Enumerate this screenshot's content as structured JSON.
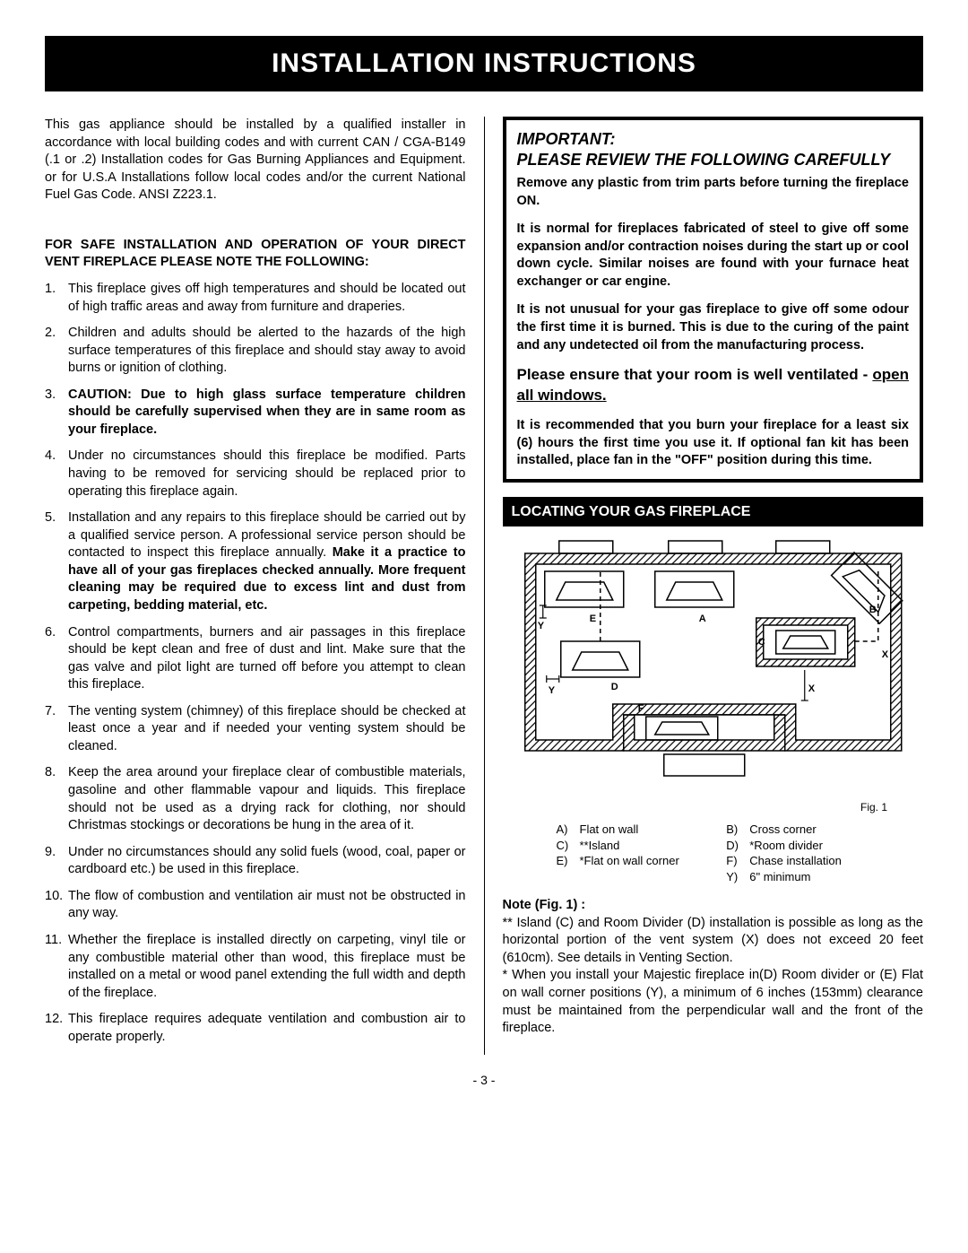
{
  "title": "INSTALLATION INSTRUCTIONS",
  "intro": "This gas appliance should be installed by a qualified installer in accordance with local building codes and with current CAN / CGA-B149 (.1 or .2) Installation codes for Gas Burning Appliances and Equipment. or for U.S.A Installations follow local codes and/or the current National Fuel Gas Code. ANSI Z223.1.",
  "noteHead": "FOR SAFE INSTALLATION AND OPERATION OF YOUR DIRECT VENT FIREPLACE PLEASE NOTE THE FOLLOWING:",
  "list": [
    {
      "text": "This fireplace gives off high temperatures and should be located out of high traffic areas and away from furniture and draperies."
    },
    {
      "text": "Children and adults should be alerted to the hazards of the high surface temperatures of this fireplace and should stay away to avoid burns or ignition of clothing."
    },
    {
      "bold": true,
      "text": "CAUTION: Due to high glass surface temperature children should be carefully supervised when they are in same room as your fireplace."
    },
    {
      "text": "Under no circumstances should this fireplace be modified. Parts having to be removed for servicing should be replaced prior to operating this fireplace again."
    },
    {
      "pre": "Installation and any repairs to this fireplace should be carried out by a qualified service person. A professional service person should be contacted to inspect this fireplace annually. ",
      "boldtail": "Make it a practice to have all of your gas fireplaces checked annually. More frequent cleaning may be required due to excess lint and dust from carpeting, bedding material, etc."
    },
    {
      "text": "Control compartments, burners and air passages in this fireplace should be kept clean and free of dust and lint. Make sure that the gas valve and pilot light are turned off before you attempt to clean this fireplace."
    },
    {
      "text": "The venting system (chimney) of this fireplace should be checked at least once a year and if needed your venting system should be cleaned."
    },
    {
      "text": "Keep the area around your fireplace clear of combustible materials, gasoline and other flammable vapour and liquids. This fireplace should not be used as a drying rack for clothing, nor should Christmas stockings or decorations be hung in the area of it."
    },
    {
      "text": "Under no circumstances should any solid fuels (wood, coal, paper or cardboard etc.) be used in this fireplace."
    },
    {
      "text": "The flow of combustion and ventilation air must not be obstructed in any way."
    },
    {
      "text": "Whether the fireplace is installed directly on carpeting, vinyl tile or any combustible material other than wood, this fireplace must be installed on a metal or wood panel extending the full width and depth of the fireplace."
    },
    {
      "text": "This fireplace requires adequate ventilation and combustion air to operate properly."
    }
  ],
  "important": {
    "head1": "IMPORTANT:",
    "head2": "PLEASE REVIEW THE FOLLOWING CAREFULLY",
    "p1": "Remove any plastic from trim parts before turning the fireplace ON.",
    "p2": "It is normal for fireplaces fabricated of steel to give off some expansion and/or contraction noises during the start up or cool down cycle. Similar noises are found with your furnace heat exchanger or car engine.",
    "p3": "It is not unusual for your gas fireplace to give off some odour the first time it is burned. This is due to the curing of the paint and any undetected oil from the manufacturing process.",
    "p4a": "Please ensure that your room is well ventilated - ",
    "p4b": "open all windows.",
    "p5": "It is recommended that you burn your fireplace for a least six (6) hours the first time you use it. If optional fan kit has been installed, place fan in the \"OFF\" position during this time."
  },
  "section2": "LOCATING YOUR GAS FIREPLACE",
  "figLabel": "Fig. 1",
  "legend": [
    [
      {
        "k": "A)",
        "v": "Flat on wall"
      },
      {
        "k": "B)",
        "v": "Cross corner"
      }
    ],
    [
      {
        "k": "C)",
        "v": "**Island"
      },
      {
        "k": "D)",
        "v": "*Room divider"
      }
    ],
    [
      {
        "k": "E)",
        "v": "*Flat on wall corner"
      },
      {
        "k": "F)",
        "v": "Chase installation"
      }
    ],
    [
      {
        "k": "",
        "v": ""
      },
      {
        "k": "Y)",
        "v": "6\" minimum"
      }
    ]
  ],
  "noteFig": {
    "h": "Note (Fig. 1) :",
    "t1": "** Island (C) and Room Divider (D) installation is possible as long as the horizontal portion of the vent system (X) does not exceed 20 feet (610cm). See details in Venting Section.",
    "t2": "* When you install your Majestic fireplace in(D) Room divider or (E) Flat on wall corner positions (Y), a minimum of 6 inches (153mm) clearance must be maintained from the perpendicular wall and the front of the fireplace."
  },
  "page": "- 3 -",
  "diagram": {
    "labels": {
      "A": "A",
      "B": "B",
      "C": "C",
      "D": "D",
      "E": "E",
      "F": "F",
      "X": "X",
      "Y": "Y",
      "X2": "X"
    }
  }
}
